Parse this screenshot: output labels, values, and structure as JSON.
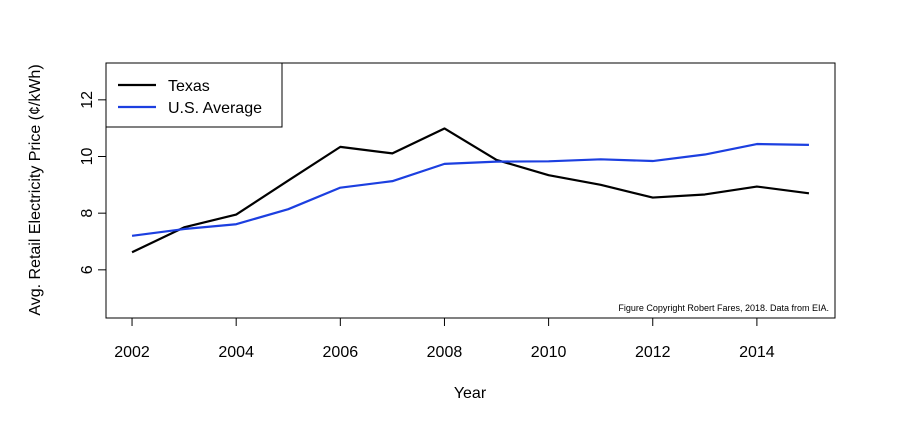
{
  "chart_data": {
    "type": "line",
    "xlabel": "Year",
    "ylabel": "Avg. Retail Electricity Price (¢/kWh)",
    "xlim": [
      2001.5,
      2015.5
    ],
    "ylim": [
      4.3,
      13.3
    ],
    "xticks": [
      2002,
      2004,
      2006,
      2008,
      2010,
      2012,
      2014
    ],
    "yticks": [
      6,
      8,
      10,
      12
    ],
    "grid": false,
    "legend_position": "top-left",
    "annotation": "Figure Copyright Robert Fares, 2018. Data from EIA.",
    "x": [
      2002,
      2003,
      2004,
      2005,
      2006,
      2007,
      2008,
      2009,
      2010,
      2011,
      2012,
      2013,
      2014,
      2015
    ],
    "series": [
      {
        "name": "Texas",
        "color": "#000000",
        "values": [
          6.62,
          7.5,
          7.95,
          9.15,
          10.34,
          10.11,
          10.99,
          9.88,
          9.34,
          9.0,
          8.55,
          8.66,
          8.94,
          8.7
        ]
      },
      {
        "name": "U.S. Average",
        "color": "#1c3fe0",
        "values": [
          7.2,
          7.44,
          7.61,
          8.14,
          8.9,
          9.13,
          9.74,
          9.82,
          9.83,
          9.9,
          9.84,
          10.07,
          10.44,
          10.41
        ]
      }
    ]
  }
}
